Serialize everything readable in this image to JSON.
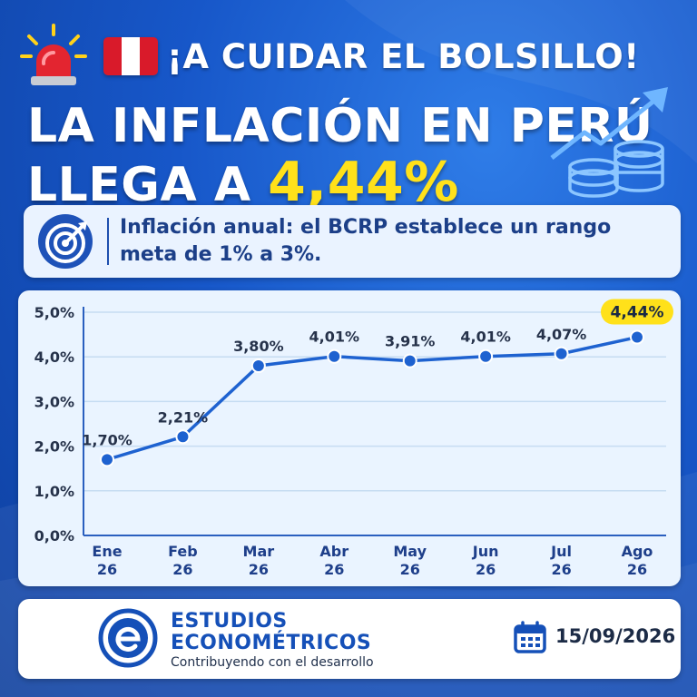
{
  "headline": {
    "kicker": "¡A CUIDAR EL BOLSILLO!",
    "title_line1": "LA INFLACIÓN EN PERÚ",
    "title_line2_prefix": "LLEGA A ",
    "title_highlight": "4,44%"
  },
  "icons": {
    "siren": "siren-icon",
    "flag": "peru-flag-icon",
    "arrow": "trend-up-arrow-icon",
    "coins": "coins-icon",
    "target": "target-icon",
    "calendar": "calendar-icon",
    "logo": "estudios-econometricos-logo"
  },
  "info": {
    "text": "Inflación anual: el BCRP establece un rango meta de 1% a 3%."
  },
  "chart_data": {
    "type": "line",
    "categories": [
      {
        "month": "Ene",
        "year": "26"
      },
      {
        "month": "Feb",
        "year": "26"
      },
      {
        "month": "Mar",
        "year": "26"
      },
      {
        "month": "Abr",
        "year": "26"
      },
      {
        "month": "May",
        "year": "26"
      },
      {
        "month": "Jun",
        "year": "26"
      },
      {
        "month": "Jul",
        "year": "26"
      },
      {
        "month": "Ago",
        "year": "26"
      }
    ],
    "values": [
      1.7,
      2.21,
      3.8,
      4.01,
      3.91,
      4.01,
      4.07,
      4.44
    ],
    "labels": [
      "1,70%",
      "2,21%",
      "3,80%",
      "4,01%",
      "3,91%",
      "4,01%",
      "4,07%",
      "4,44%"
    ],
    "highlight_index": 7,
    "ylim": [
      0,
      5
    ],
    "yticks": [
      "0,0%",
      "1,0%",
      "2,0%",
      "3,0%",
      "4,0%",
      "5,0%"
    ],
    "grid": true,
    "colors": {
      "line": "#1e62d0",
      "marker": "#1e62d0",
      "highlight_badge": "#ffe11a",
      "grid": "#c6dcf2"
    }
  },
  "footer": {
    "brand_line1": "ESTUDIOS",
    "brand_line2": "ECONOMÉTRICOS",
    "tagline": "Contribuyendo con el desarrollo",
    "date": "15/09/2026"
  }
}
